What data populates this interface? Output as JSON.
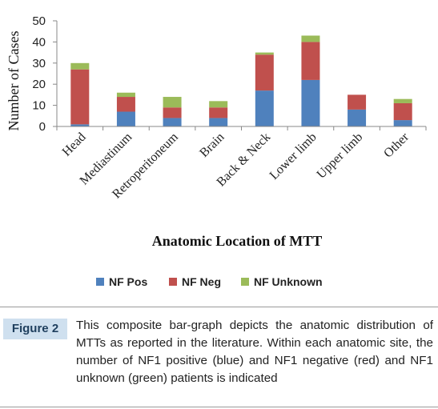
{
  "chart_data": {
    "type": "bar",
    "stacked": true,
    "categories": [
      "Head",
      "Mediastinum",
      "Retroperitoneum",
      "Brain",
      "Back & Neck",
      "Lower limb",
      "Upper limb",
      "Other"
    ],
    "series": [
      {
        "name": "NF Pos",
        "color": "#4f81bd",
        "values": [
          1,
          7,
          4,
          4,
          17,
          22,
          8,
          3
        ]
      },
      {
        "name": "NF Neg",
        "color": "#c0504d",
        "values": [
          26,
          7,
          5,
          5,
          17,
          18,
          7,
          8
        ]
      },
      {
        "name": "NF Unknown",
        "color": "#9bbb59",
        "values": [
          3,
          2,
          5,
          3,
          1,
          3,
          0,
          2
        ]
      }
    ],
    "ylabel": "Number of Cases",
    "xlabel": "Anatomic Location of MTT",
    "ylim": [
      0,
      50
    ],
    "yticks": [
      0,
      10,
      20,
      30,
      40,
      50
    ],
    "grid": false,
    "legend": "bottom"
  },
  "figure": {
    "label": "Figure 2",
    "caption": "This composite bar-graph depicts the anatomic distribution of MTTs as reported in the literature.  Within each anatomic site, the number of NF1 positive (blue) and NF1 negative (red) and NF1 unknown (green) patients is indicated"
  }
}
